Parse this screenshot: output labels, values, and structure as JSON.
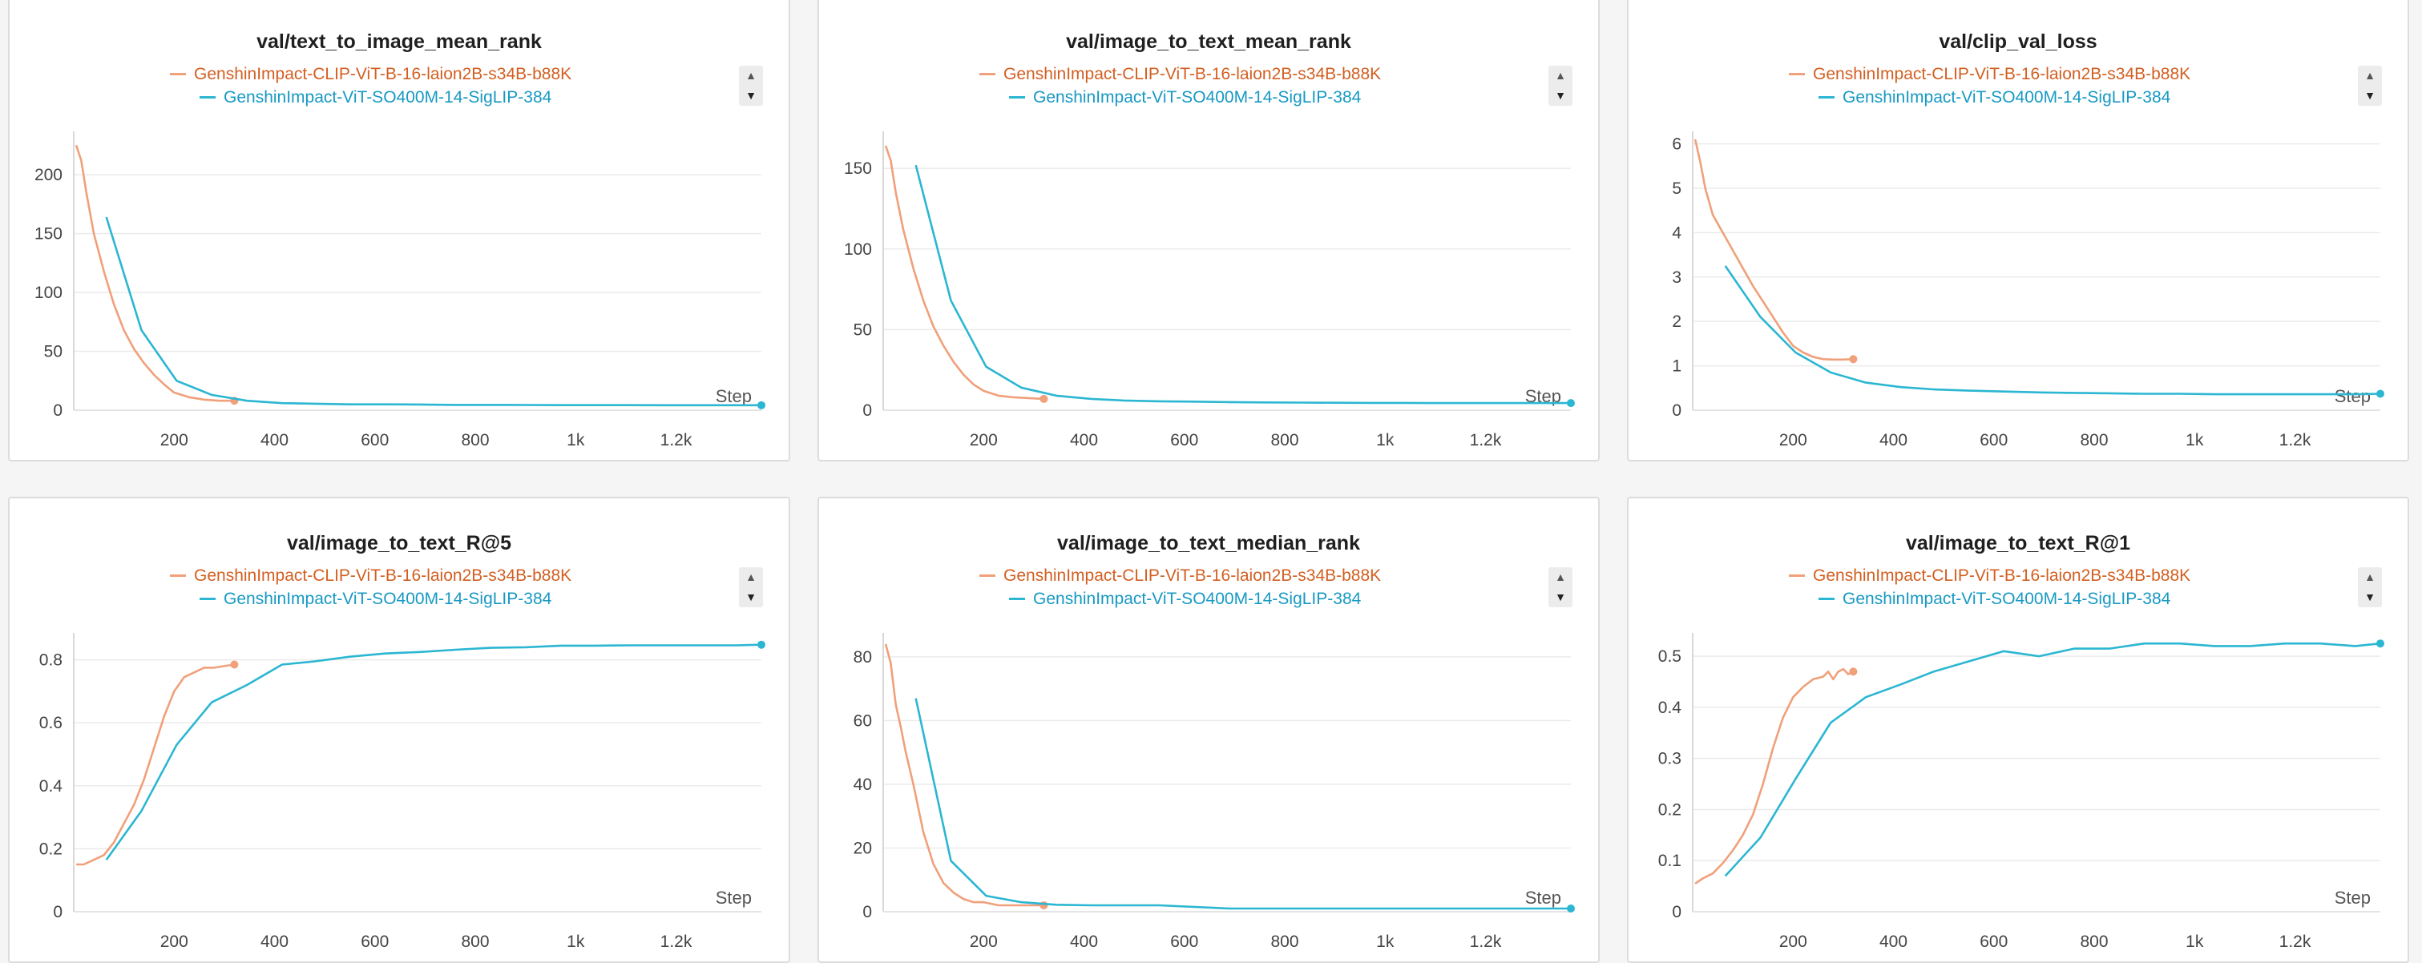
{
  "colors": {
    "orange": "#f0a07a",
    "orange_text": "#d35f21",
    "teal": "#2bb6d2",
    "teal_text": "#1799c3"
  },
  "legend": {
    "series_a": "GenshinImpact-CLIP-ViT-B-16-laion2B-s34B-b88K",
    "series_b": "GenshinImpact-ViT-SO400M-14-SigLIP-384"
  },
  "icons": {
    "scroll_up": "caret-up-icon",
    "scroll_down": "caret-down-icon"
  },
  "chart_data": [
    {
      "type": "line",
      "title": "val/text_to_image_mean_rank",
      "xlabel": "Step",
      "xlim": [
        0,
        1370
      ],
      "ylim": [
        0,
        230
      ],
      "xticks": [
        200,
        400,
        600,
        800,
        1000,
        1200
      ],
      "xtick_labels": [
        "200",
        "400",
        "600",
        "800",
        "1k",
        "1.2k"
      ],
      "yticks": [
        0,
        50,
        100,
        150,
        200
      ],
      "ytick_labels": [
        "0",
        "50",
        "100",
        "150",
        "200"
      ],
      "series": [
        {
          "name": "GenshinImpact-CLIP-ViT-B-16-laion2B-s34B-b88K",
          "color": "orange",
          "x": [
            5,
            15,
            25,
            40,
            60,
            80,
            100,
            120,
            140,
            160,
            180,
            200,
            230,
            260,
            290,
            320
          ],
          "y": [
            225,
            212,
            185,
            150,
            118,
            90,
            68,
            52,
            40,
            30,
            22,
            15,
            11,
            9,
            8,
            8
          ]
        },
        {
          "name": "GenshinImpact-ViT-SO400M-14-SigLIP-384",
          "color": "teal",
          "x": [
            65,
            135,
            205,
            275,
            345,
            415,
            480,
            550,
            620,
            690,
            760,
            830,
            900,
            970,
            1040,
            1110,
            1180,
            1250,
            1320,
            1370
          ],
          "y": [
            164,
            68,
            25,
            13,
            8,
            6,
            5.5,
            5,
            5,
            4.8,
            4.5,
            4.5,
            4.4,
            4.3,
            4.3,
            4.3,
            4.2,
            4.2,
            4.2,
            4.2
          ]
        }
      ]
    },
    {
      "type": "line",
      "title": "val/image_to_text_mean_rank",
      "xlabel": "Step",
      "xlim": [
        0,
        1370
      ],
      "ylim": [
        0,
        168
      ],
      "xticks": [
        200,
        400,
        600,
        800,
        1000,
        1200
      ],
      "xtick_labels": [
        "200",
        "400",
        "600",
        "800",
        "1k",
        "1.2k"
      ],
      "yticks": [
        0,
        50,
        100,
        150
      ],
      "ytick_labels": [
        "0",
        "50",
        "100",
        "150"
      ],
      "series": [
        {
          "name": "GenshinImpact-CLIP-ViT-B-16-laion2B-s34B-b88K",
          "color": "orange",
          "x": [
            5,
            15,
            25,
            40,
            60,
            80,
            100,
            120,
            140,
            160,
            180,
            200,
            230,
            260,
            290,
            320
          ],
          "y": [
            164,
            155,
            135,
            112,
            88,
            68,
            52,
            40,
            30,
            22,
            16,
            12,
            9,
            8,
            7.5,
            7
          ]
        },
        {
          "name": "GenshinImpact-ViT-SO400M-14-SigLIP-384",
          "color": "teal",
          "x": [
            65,
            135,
            205,
            275,
            345,
            415,
            480,
            550,
            620,
            690,
            760,
            830,
            900,
            970,
            1040,
            1110,
            1180,
            1250,
            1320,
            1370
          ],
          "y": [
            152,
            68,
            27,
            14,
            9,
            7,
            6,
            5.5,
            5.3,
            5,
            4.8,
            4.7,
            4.6,
            4.5,
            4.5,
            4.4,
            4.4,
            4.4,
            4.4,
            4.4
          ]
        }
      ]
    },
    {
      "type": "line",
      "title": "val/clip_val_loss",
      "xlabel": "Step",
      "xlim": [
        0,
        1370
      ],
      "ylim": [
        0,
        6.1
      ],
      "xticks": [
        200,
        400,
        600,
        800,
        1000,
        1200
      ],
      "xtick_labels": [
        "200",
        "400",
        "600",
        "800",
        "1k",
        "1.2k"
      ],
      "yticks": [
        0,
        1,
        2,
        3,
        4,
        5,
        6
      ],
      "ytick_labels": [
        "0",
        "1",
        "2",
        "3",
        "4",
        "5",
        "6"
      ],
      "series": [
        {
          "name": "GenshinImpact-CLIP-ViT-B-16-laion2B-s34B-b88K",
          "color": "orange",
          "x": [
            5,
            15,
            25,
            40,
            60,
            80,
            100,
            120,
            140,
            160,
            180,
            200,
            220,
            240,
            260,
            280,
            300,
            320
          ],
          "y": [
            6.1,
            5.6,
            5.0,
            4.4,
            4.0,
            3.6,
            3.2,
            2.8,
            2.45,
            2.1,
            1.75,
            1.45,
            1.3,
            1.2,
            1.15,
            1.14,
            1.14,
            1.15
          ]
        },
        {
          "name": "GenshinImpact-ViT-SO400M-14-SigLIP-384",
          "color": "teal",
          "x": [
            65,
            135,
            205,
            275,
            345,
            415,
            480,
            550,
            620,
            690,
            760,
            830,
            900,
            970,
            1040,
            1110,
            1180,
            1250,
            1320,
            1370
          ],
          "y": [
            3.25,
            2.1,
            1.3,
            0.85,
            0.62,
            0.52,
            0.47,
            0.44,
            0.42,
            0.4,
            0.39,
            0.38,
            0.37,
            0.37,
            0.36,
            0.36,
            0.36,
            0.36,
            0.36,
            0.37
          ]
        }
      ]
    },
    {
      "type": "line",
      "title": "val/image_to_text_R@5",
      "xlabel": "Step",
      "xlim": [
        0,
        1370
      ],
      "ylim": [
        0,
        0.86
      ],
      "xticks": [
        200,
        400,
        600,
        800,
        1000,
        1200
      ],
      "xtick_labels": [
        "200",
        "400",
        "600",
        "800",
        "1k",
        "1.2k"
      ],
      "yticks": [
        0,
        0.2,
        0.4,
        0.6,
        0.8
      ],
      "ytick_labels": [
        "0",
        "0.2",
        "0.4",
        "0.6",
        "0.8"
      ],
      "series": [
        {
          "name": "GenshinImpact-CLIP-ViT-B-16-laion2B-s34B-b88K",
          "color": "orange",
          "x": [
            5,
            20,
            40,
            60,
            80,
            100,
            120,
            140,
            160,
            180,
            200,
            220,
            240,
            260,
            280,
            300,
            320
          ],
          "y": [
            0.15,
            0.15,
            0.165,
            0.18,
            0.22,
            0.28,
            0.34,
            0.42,
            0.52,
            0.62,
            0.7,
            0.745,
            0.76,
            0.775,
            0.775,
            0.78,
            0.785
          ]
        },
        {
          "name": "GenshinImpact-ViT-SO400M-14-SigLIP-384",
          "color": "teal",
          "x": [
            65,
            135,
            205,
            275,
            345,
            415,
            480,
            550,
            620,
            690,
            760,
            830,
            900,
            970,
            1040,
            1110,
            1180,
            1250,
            1320,
            1370
          ],
          "y": [
            0.165,
            0.32,
            0.53,
            0.665,
            0.72,
            0.785,
            0.795,
            0.81,
            0.82,
            0.825,
            0.832,
            0.838,
            0.84,
            0.845,
            0.845,
            0.846,
            0.846,
            0.846,
            0.846,
            0.848
          ]
        }
      ]
    },
    {
      "type": "line",
      "title": "val/image_to_text_median_rank",
      "xlabel": "Step",
      "xlim": [
        0,
        1370
      ],
      "ylim": [
        0,
        85
      ],
      "xticks": [
        200,
        400,
        600,
        800,
        1000,
        1200
      ],
      "xtick_labels": [
        "200",
        "400",
        "600",
        "800",
        "1k",
        "1.2k"
      ],
      "yticks": [
        0,
        20,
        40,
        60,
        80
      ],
      "ytick_labels": [
        "0",
        "20",
        "40",
        "60",
        "80"
      ],
      "series": [
        {
          "name": "GenshinImpact-CLIP-ViT-B-16-laion2B-s34B-b88K",
          "color": "orange",
          "x": [
            5,
            15,
            25,
            35,
            45,
            60,
            80,
            100,
            120,
            140,
            160,
            180,
            200,
            230,
            260,
            290,
            320
          ],
          "y": [
            84,
            78,
            65,
            58,
            50,
            40,
            25,
            15,
            9,
            6,
            4,
            3,
            3,
            2,
            2,
            2,
            2
          ]
        },
        {
          "name": "GenshinImpact-ViT-SO400M-14-SigLIP-384",
          "color": "teal",
          "x": [
            65,
            135,
            205,
            275,
            345,
            415,
            480,
            550,
            620,
            690,
            760,
            830,
            900,
            970,
            1040,
            1110,
            1180,
            1250,
            1320,
            1370
          ],
          "y": [
            67,
            16,
            5,
            3,
            2.2,
            2,
            2,
            2,
            1.5,
            1,
            1,
            1,
            1,
            1,
            1,
            1,
            1,
            1,
            1,
            1
          ]
        }
      ]
    },
    {
      "type": "line",
      "title": "val/image_to_text_R@1",
      "xlabel": "Step",
      "xlim": [
        0,
        1370
      ],
      "ylim": [
        0,
        0.53
      ],
      "xticks": [
        200,
        400,
        600,
        800,
        1000,
        1200
      ],
      "xtick_labels": [
        "200",
        "400",
        "600",
        "800",
        "1k",
        "1.2k"
      ],
      "yticks": [
        0,
        0.1,
        0.2,
        0.3,
        0.4,
        0.5
      ],
      "ytick_labels": [
        "0",
        "0.1",
        "0.2",
        "0.3",
        "0.4",
        "0.5"
      ],
      "series": [
        {
          "name": "GenshinImpact-CLIP-ViT-B-16-laion2B-s34B-b88K",
          "color": "orange",
          "x": [
            5,
            20,
            40,
            60,
            80,
            100,
            120,
            140,
            160,
            180,
            200,
            220,
            240,
            260,
            270,
            280,
            290,
            300,
            310,
            320
          ],
          "y": [
            0.055,
            0.065,
            0.075,
            0.095,
            0.12,
            0.15,
            0.19,
            0.25,
            0.32,
            0.38,
            0.42,
            0.44,
            0.455,
            0.46,
            0.47,
            0.455,
            0.47,
            0.475,
            0.465,
            0.47
          ]
        },
        {
          "name": "GenshinImpact-ViT-SO400M-14-SigLIP-384",
          "color": "teal",
          "x": [
            65,
            135,
            205,
            275,
            345,
            415,
            480,
            550,
            620,
            690,
            760,
            830,
            900,
            970,
            1040,
            1110,
            1180,
            1250,
            1320,
            1370
          ],
          "y": [
            0.07,
            0.145,
            0.26,
            0.37,
            0.42,
            0.445,
            0.47,
            0.49,
            0.51,
            0.5,
            0.515,
            0.515,
            0.525,
            0.525,
            0.52,
            0.52,
            0.525,
            0.525,
            0.52,
            0.525
          ]
        }
      ]
    }
  ]
}
